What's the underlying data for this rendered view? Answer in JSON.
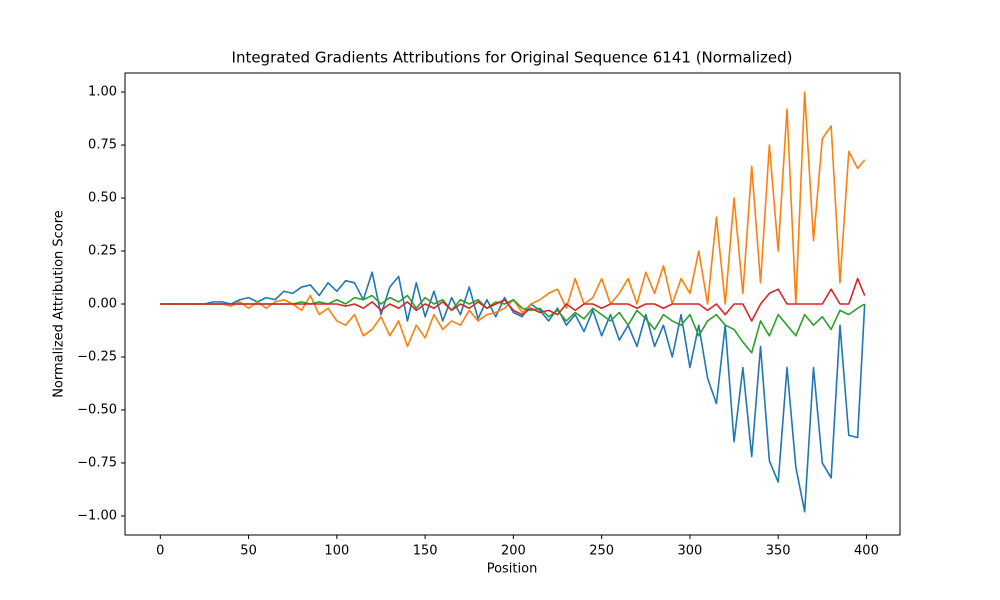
{
  "chart_data": {
    "type": "line",
    "title": "Integrated Gradients Attributions for Original Sequence 6141 (Normalized)",
    "x_label": "Position",
    "y_label": "Normalized Attribution Score",
    "x": [
      0,
      5,
      10,
      15,
      20,
      25,
      30,
      35,
      40,
      45,
      50,
      55,
      60,
      65,
      70,
      75,
      80,
      85,
      90,
      95,
      100,
      105,
      110,
      115,
      120,
      125,
      130,
      135,
      140,
      145,
      150,
      155,
      160,
      165,
      170,
      175,
      180,
      185,
      190,
      195,
      200,
      205,
      210,
      215,
      220,
      225,
      230,
      235,
      240,
      245,
      250,
      255,
      260,
      265,
      270,
      275,
      280,
      285,
      290,
      295,
      300,
      305,
      310,
      315,
      320,
      325,
      330,
      335,
      340,
      345,
      350,
      355,
      360,
      365,
      370,
      375,
      380,
      385,
      390,
      395,
      399
    ],
    "series": [
      {
        "color": "#1f77b4",
        "values": [
          0,
          0,
          0,
          0,
          0,
          0,
          0.01,
          0.01,
          0,
          0.02,
          0.03,
          0.01,
          0.03,
          0.02,
          0.06,
          0.05,
          0.08,
          0.09,
          0.04,
          0.1,
          0.06,
          0.11,
          0.1,
          0.02,
          0.15,
          -0.05,
          0.08,
          0.13,
          -0.08,
          0.1,
          -0.06,
          0.06,
          -0.08,
          0.03,
          -0.05,
          0.08,
          -0.07,
          0.02,
          -0.06,
          0.03,
          -0.04,
          -0.06,
          0,
          -0.03,
          -0.08,
          -0.02,
          -0.1,
          -0.05,
          -0.13,
          -0.03,
          -0.15,
          -0.05,
          -0.17,
          -0.1,
          -0.2,
          -0.05,
          -0.2,
          -0.1,
          -0.25,
          -0.05,
          -0.3,
          -0.1,
          -0.35,
          -0.47,
          -0.1,
          -0.65,
          -0.3,
          -0.72,
          -0.2,
          -0.74,
          -0.84,
          -0.3,
          -0.77,
          -0.98,
          -0.3,
          -0.75,
          -0.82,
          -0.1,
          -0.62,
          -0.63,
          0
        ]
      },
      {
        "color": "#ff7f0e",
        "values": [
          0,
          0,
          0,
          0,
          0,
          0,
          0,
          0,
          -0.01,
          0.01,
          -0.02,
          0.01,
          -0.02,
          0.01,
          0.02,
          0,
          -0.03,
          0.04,
          -0.05,
          -0.02,
          -0.08,
          -0.1,
          -0.05,
          -0.15,
          -0.12,
          -0.06,
          -0.15,
          -0.08,
          -0.2,
          -0.1,
          -0.16,
          -0.05,
          -0.12,
          -0.08,
          -0.1,
          -0.03,
          -0.08,
          -0.05,
          -0.04,
          -0.02,
          0.02,
          -0.04,
          0,
          0.02,
          0.05,
          0.07,
          -0.02,
          0.12,
          0,
          0.03,
          0.12,
          0,
          0.05,
          0.12,
          0,
          0.15,
          0.05,
          0.18,
          0,
          0.12,
          0.05,
          0.25,
          0,
          0.41,
          0,
          0.5,
          0.05,
          0.65,
          0.1,
          0.75,
          0.25,
          0.92,
          0,
          1.0,
          0.3,
          0.78,
          0.84,
          0.1,
          0.72,
          0.64,
          0.68
        ]
      },
      {
        "color": "#2ca02c",
        "values": [
          0,
          0,
          0,
          0,
          0,
          0,
          0,
          0,
          0,
          0,
          0,
          0,
          0,
          0,
          0,
          0,
          0.01,
          0,
          0.01,
          0,
          0.02,
          0,
          0.03,
          0.02,
          0.04,
          0,
          0.03,
          0.01,
          0.04,
          -0.02,
          0.03,
          0,
          0.02,
          -0.03,
          0.02,
          0,
          0.02,
          -0.02,
          0.01,
          0,
          0.02,
          -0.02,
          -0.03,
          -0.02,
          -0.06,
          -0.03,
          -0.08,
          -0.04,
          -0.07,
          -0.02,
          -0.05,
          -0.08,
          -0.04,
          -0.1,
          -0.03,
          -0.07,
          -0.12,
          -0.05,
          -0.08,
          -0.1,
          -0.05,
          -0.15,
          -0.08,
          -0.05,
          -0.1,
          -0.12,
          -0.18,
          -0.23,
          -0.08,
          -0.15,
          -0.05,
          -0.1,
          -0.15,
          -0.05,
          -0.1,
          -0.06,
          -0.12,
          -0.03,
          -0.05,
          -0.02,
          0
        ]
      },
      {
        "color": "#d62728",
        "values": [
          0,
          0,
          0,
          0,
          0,
          0,
          0,
          0,
          0,
          0,
          0,
          0,
          0,
          0,
          0,
          0,
          0,
          0,
          0,
          0,
          0,
          -0.01,
          0,
          -0.02,
          0.01,
          -0.03,
          0,
          -0.02,
          0.01,
          -0.03,
          0,
          -0.02,
          0.01,
          -0.03,
          0,
          -0.02,
          0.01,
          -0.02,
          0,
          0.02,
          -0.03,
          -0.05,
          -0.02,
          -0.04,
          -0.03,
          -0.05,
          0,
          -0.03,
          0,
          0,
          -0.02,
          0,
          0,
          0,
          -0.02,
          0,
          0,
          -0.02,
          0,
          0,
          0,
          0,
          -0.03,
          0,
          -0.05,
          0,
          0,
          -0.08,
          0,
          0.05,
          0.07,
          0,
          0,
          0,
          0,
          0,
          0.07,
          0,
          0,
          0.12,
          0.04
        ]
      }
    ],
    "xlim": [
      -20,
      419
    ],
    "ylim": [
      -1.09,
      1.09
    ],
    "xticks": [
      0,
      50,
      100,
      150,
      200,
      250,
      300,
      350,
      400
    ],
    "yticks": [
      {
        "value": -1,
        "label": "−1.00"
      },
      {
        "value": -0.75,
        "label": "−0.75"
      },
      {
        "value": -0.5,
        "label": "−0.50"
      },
      {
        "value": -0.25,
        "label": "−0.25"
      },
      {
        "value": 0,
        "label": "0.00"
      },
      {
        "value": 0.25,
        "label": "0.25"
      },
      {
        "value": 0.5,
        "label": "0.50"
      },
      {
        "value": 0.75,
        "label": "0.75"
      },
      {
        "value": 1,
        "label": "1.00"
      }
    ],
    "grid": false
  }
}
